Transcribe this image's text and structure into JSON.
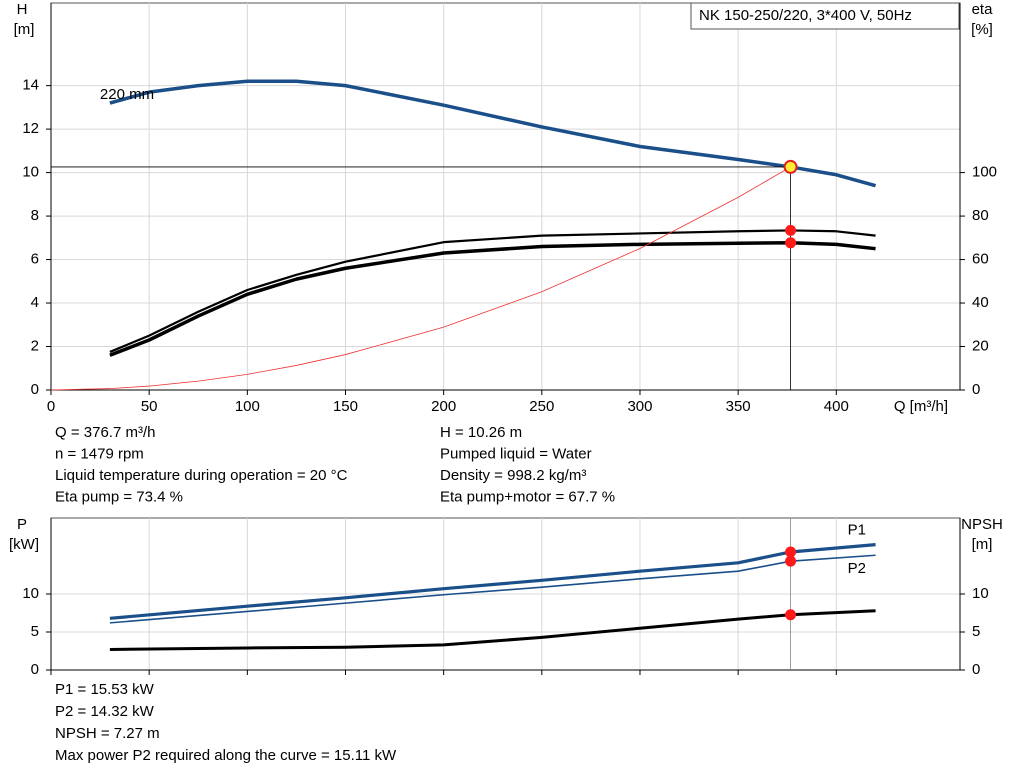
{
  "chart_data": [
    {
      "type": "line",
      "legend_title": "NK 150-250/220, 3*400 V, 50Hz",
      "xlabel": "Q [m³/h]",
      "ylabel": "H",
      "yunit": "[m]",
      "y2label": "eta",
      "y2unit": "[%]",
      "x": [
        0,
        30,
        50,
        75,
        100,
        125,
        150,
        200,
        250,
        300,
        350,
        376.7,
        400,
        420
      ],
      "xlim": [
        0,
        463
      ],
      "xticks": [
        0,
        50,
        100,
        150,
        200,
        250,
        300,
        350,
        400
      ],
      "ylim": [
        0,
        17.8
      ],
      "yticks": [
        0,
        2,
        4,
        6,
        8,
        10,
        12,
        14
      ],
      "y2lim": [
        0,
        178
      ],
      "y2ticks": [
        0,
        20,
        40,
        60,
        80,
        100
      ],
      "grid": true,
      "series": [
        {
          "name": "220 mm",
          "color": "#1b4f8a",
          "values": [
            null,
            13.2,
            13.7,
            14.0,
            14.2,
            14.2,
            14.0,
            13.1,
            12.1,
            11.2,
            10.6,
            10.26,
            9.9,
            9.4
          ]
        },
        {
          "color": "#000000",
          "axis": "y2",
          "values": [
            null,
            17.5,
            25,
            36,
            46,
            53,
            59,
            68,
            71,
            72,
            73,
            73.4,
            73,
            71
          ]
        },
        {
          "color": "#000000",
          "axis": "y2",
          "values": [
            null,
            16,
            23,
            34,
            44,
            51,
            56,
            63,
            66,
            67,
            67.5,
            67.7,
            67,
            65
          ]
        },
        {
          "color": "#ee3333",
          "values": [
            0,
            0.065,
            0.18,
            0.41,
            0.72,
            1.13,
            1.63,
            2.89,
            4.52,
            6.51,
            8.86,
            10.26,
            null,
            null
          ]
        }
      ],
      "annotations": [
        "Q = 376.7 m³/h",
        "n = 1479 rpm",
        "Liquid temperature during operation = 20 °C",
        "Eta pump = 73.4 %",
        "H = 10.26 m",
        "Pumped liquid = Water",
        "Density = 998.2 kg/m³",
        "Eta pump+motor = 67.7 %"
      ]
    },
    {
      "type": "line",
      "ylabel": "P",
      "yunit": "[kW]",
      "y2label": "NPSH",
      "y2unit": "[m]",
      "x": [
        30,
        100,
        150,
        200,
        250,
        300,
        350,
        376.7,
        420
      ],
      "xlim": [
        0,
        463
      ],
      "xticks": [
        0,
        50,
        100,
        150,
        200,
        250,
        300,
        350,
        400
      ],
      "ylim": [
        0,
        20
      ],
      "yticks": [
        0,
        5,
        10
      ],
      "y2lim": [
        0,
        20
      ],
      "y2ticks": [
        0,
        5,
        10
      ],
      "grid": true,
      "series": [
        {
          "name": "P1",
          "color": "#1b4f8a",
          "values": [
            6.8,
            8.4,
            9.5,
            10.7,
            11.8,
            13.0,
            14.1,
            15.53,
            16.5
          ]
        },
        {
          "name": "P2",
          "color": "#1b4f8a",
          "values": [
            6.2,
            7.7,
            8.8,
            9.9,
            10.9,
            12.0,
            13.0,
            14.32,
            15.1
          ]
        },
        {
          "color": "#000000",
          "axis": "y2",
          "values": [
            2.7,
            2.9,
            3.0,
            3.3,
            4.3,
            5.5,
            6.7,
            7.27,
            7.8
          ]
        }
      ],
      "annotations": [
        "P1 = 15.53 kW",
        "P2 = 14.32 kW",
        "NPSH = 7.27 m",
        "Max power P2 required along the curve = 15.11 kW"
      ]
    }
  ]
}
